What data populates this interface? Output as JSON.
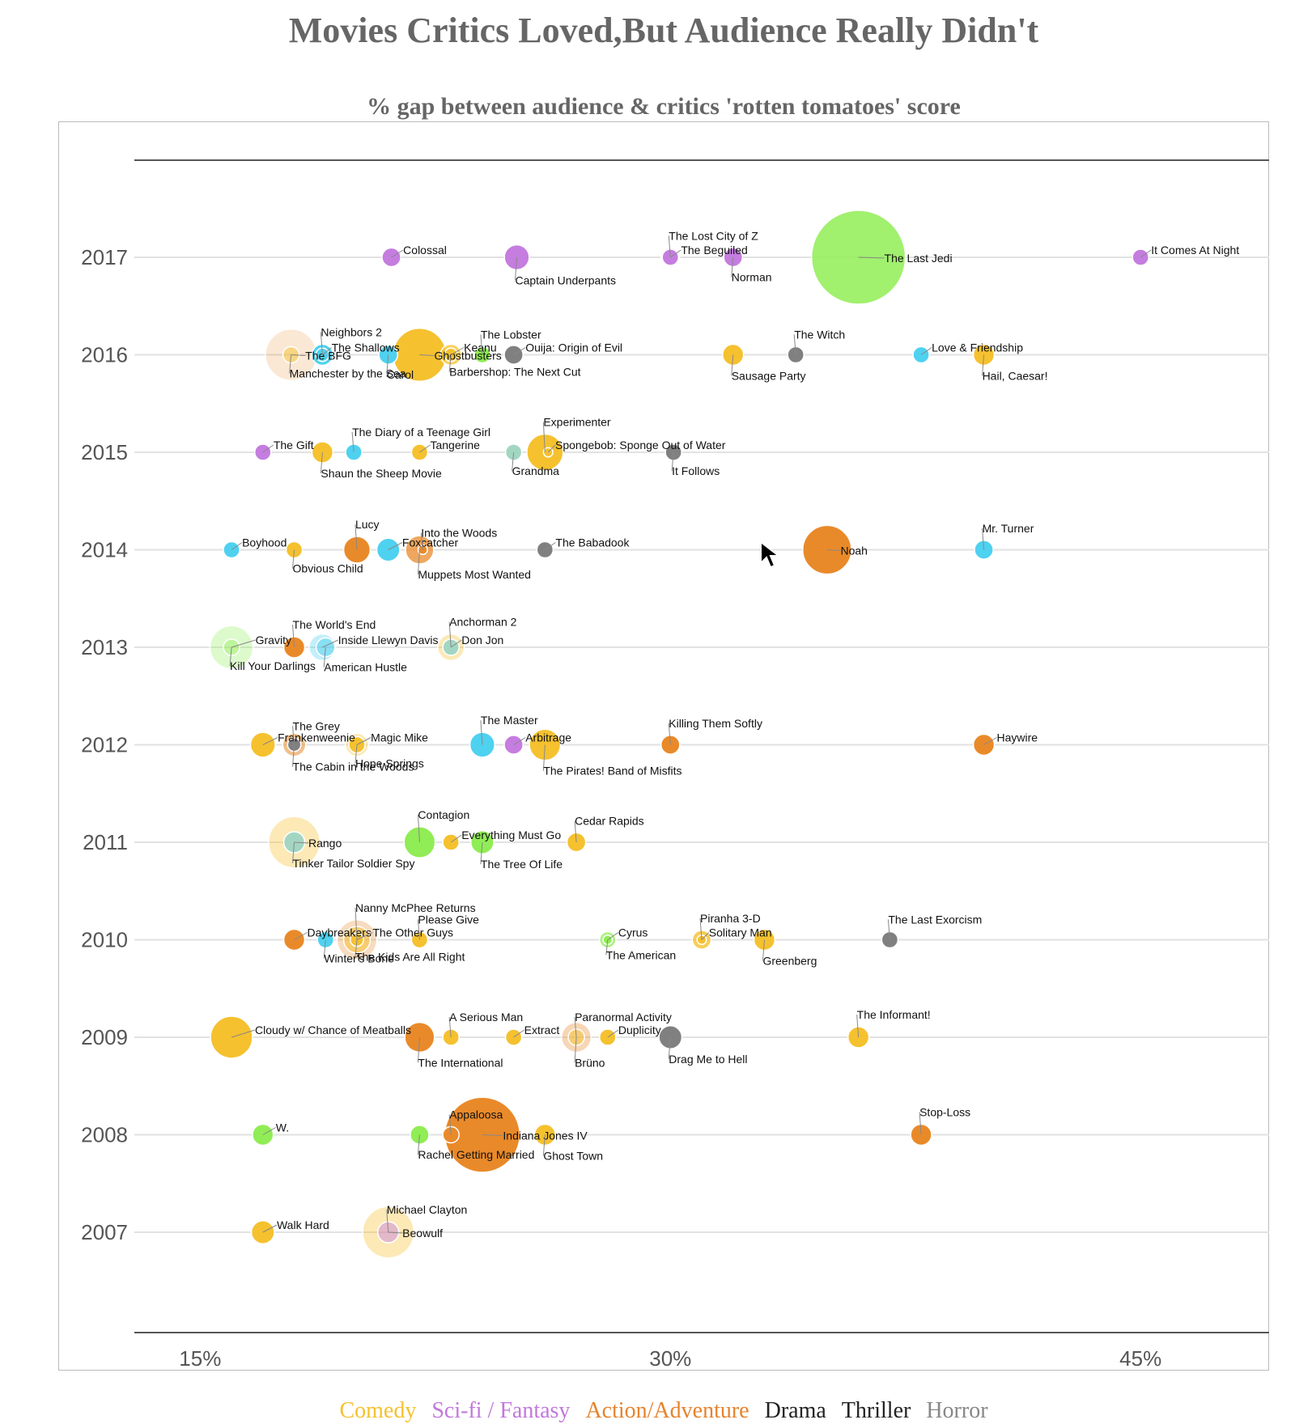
{
  "title": "Movies Critics Loved,But Audience Really Didn't",
  "subtitle": "% gap between audience & critics 'rotten tomatoes' score",
  "legend": [
    {
      "label": "Comedy",
      "color": "#f5c12f"
    },
    {
      "label": "Sci-fi / Fantasy",
      "color": "#c278dc"
    },
    {
      "label": "Action/Adventure",
      "color": "#e6832c"
    },
    {
      "label": "Drama",
      "color": "#222222"
    },
    {
      "label": "Thriller",
      "color": "#222222"
    },
    {
      "label": "Horror",
      "color": "#888888"
    }
  ],
  "chart_data": {
    "type": "scatter",
    "title": "Movies Critics Loved,But Audience Really Didn't",
    "subtitle": "% gap between audience & critics 'rotten tomatoes' score",
    "x_ticks": [
      "15%",
      "30%",
      "45%"
    ],
    "x_tick_values": [
      15,
      30,
      45
    ],
    "xlim": [
      12.9,
      49.1
    ],
    "years": [
      "2017",
      "2016",
      "2015",
      "2014",
      "2013",
      "2012",
      "2011",
      "2010",
      "2009",
      "2008",
      "2007"
    ],
    "colors": {
      "comedy": "#f5c12f",
      "scifi": "#c57ddf",
      "action": "#e98a2a",
      "drama": "#4fd1f0",
      "thriller": "#90ed55",
      "horror": "#808080",
      "other": "#a3d6c2"
    },
    "points": [
      {
        "year": "2017",
        "name": "Colossal",
        "x": 21.1,
        "s": 4,
        "c": "scifi"
      },
      {
        "year": "2017",
        "name": "Captain Underpants",
        "x": 25.1,
        "s": 7,
        "c": "scifi"
      },
      {
        "year": "2017",
        "name": "The Lost City of Z",
        "x": 30.0,
        "s": 4,
        "c": "scifi",
        "o": 0.5
      },
      {
        "year": "2017",
        "name": "The Beguiled",
        "x": 30.0,
        "s": 3,
        "c": "scifi"
      },
      {
        "year": "2017",
        "name": "Norman",
        "x": 32.0,
        "s": 4,
        "c": "scifi"
      },
      {
        "year": "2017",
        "name": "The Last Jedi",
        "x": 36.0,
        "s": 100,
        "c": "thriller",
        "o": 0.85
      },
      {
        "year": "2017",
        "name": "It Comes At Night",
        "x": 45.0,
        "s": 3,
        "c": "scifi"
      },
      {
        "year": "2016",
        "name": "The BFG",
        "x": 17.9,
        "s": 30,
        "c": "action",
        "o": 0.2
      },
      {
        "year": "2016",
        "name": "Manchester by the Sea",
        "x": 17.9,
        "s": 3,
        "c": "comedy",
        "o": 0.5
      },
      {
        "year": "2016",
        "name": "Neighbors 2",
        "x": 18.9,
        "s": 5,
        "c": "drama"
      },
      {
        "year": "2016",
        "name": "The Shallows",
        "x": 18.9,
        "s": 2,
        "c": "drama"
      },
      {
        "year": "2016",
        "name": "Carol",
        "x": 21.0,
        "s": 4,
        "c": "drama"
      },
      {
        "year": "2016",
        "name": "Ghostbusters",
        "x": 22.0,
        "s": 32,
        "c": "comedy"
      },
      {
        "year": "2016",
        "name": "Keanu",
        "x": 23.0,
        "s": 5,
        "c": "comedy",
        "o": 0.75
      },
      {
        "year": "2016",
        "name": "Barbershop: The Next Cut",
        "x": 23.0,
        "s": 2,
        "c": "comedy"
      },
      {
        "year": "2016",
        "name": "The Lobster",
        "x": 24.0,
        "s": 3,
        "c": "thriller"
      },
      {
        "year": "2016",
        "name": "Ouija: Origin of Evil",
        "x": 25.0,
        "s": 4,
        "c": "horror"
      },
      {
        "year": "2016",
        "name": "Sausage Party",
        "x": 32.0,
        "s": 5,
        "c": "comedy"
      },
      {
        "year": "2016",
        "name": "The Witch",
        "x": 34.0,
        "s": 3,
        "c": "horror"
      },
      {
        "year": "2016",
        "name": "Love & Friendship",
        "x": 38.0,
        "s": 3,
        "c": "drama"
      },
      {
        "year": "2016",
        "name": "Hail, Caesar!",
        "x": 40.0,
        "s": 5,
        "c": "comedy"
      },
      {
        "year": "2015",
        "name": "The Gift",
        "x": 17.0,
        "s": 3,
        "c": "scifi"
      },
      {
        "year": "2015",
        "name": "Shaun the Sheep Movie",
        "x": 18.9,
        "s": 5,
        "c": "comedy"
      },
      {
        "year": "2015",
        "name": "The Diary of a Teenage Girl",
        "x": 19.9,
        "s": 3,
        "c": "drama"
      },
      {
        "year": "2015",
        "name": "Tangerine",
        "x": 22.0,
        "s": 3,
        "c": "comedy"
      },
      {
        "year": "2015",
        "name": "Grandma",
        "x": 25.0,
        "s": 3,
        "c": "other"
      },
      {
        "year": "2015",
        "name": "Experimenter",
        "x": 26.0,
        "s": 15,
        "c": "comedy"
      },
      {
        "year": "2015",
        "name": "Spongebob: Sponge Out of Water",
        "x": 26.1,
        "s": 1,
        "c": "comedy"
      },
      {
        "year": "2015",
        "name": "It Follows",
        "x": 30.1,
        "s": 3,
        "c": "horror"
      },
      {
        "year": "2014",
        "name": "Boyhood",
        "x": 16.0,
        "s": 3,
        "c": "drama"
      },
      {
        "year": "2014",
        "name": "Obvious Child",
        "x": 18.0,
        "s": 3,
        "c": "comedy"
      },
      {
        "year": "2014",
        "name": "Lucy",
        "x": 20.0,
        "s": 8,
        "c": "action"
      },
      {
        "year": "2014",
        "name": "Foxcatcher",
        "x": 21.0,
        "s": 6,
        "c": "drama"
      },
      {
        "year": "2014",
        "name": "Muppets Most Wanted",
        "x": 22.0,
        "s": 9,
        "c": "action",
        "o": 0.75
      },
      {
        "year": "2014",
        "name": "Into the Woods",
        "x": 22.1,
        "s": 1,
        "c": "action"
      },
      {
        "year": "2014",
        "name": "The Babadook",
        "x": 26.0,
        "s": 3,
        "c": "horror"
      },
      {
        "year": "2014",
        "name": "Noah",
        "x": 35.0,
        "s": 27,
        "c": "action"
      },
      {
        "year": "2014",
        "name": "Mr. Turner",
        "x": 40.0,
        "s": 4,
        "c": "drama"
      },
      {
        "year": "2013",
        "name": "Gravity",
        "x": 16.0,
        "s": 21,
        "c": "thriller",
        "o": 0.3
      },
      {
        "year": "2013",
        "name": "Kill Your Darlings",
        "x": 16.0,
        "s": 3,
        "c": "thriller",
        "o": 0.4
      },
      {
        "year": "2013",
        "name": "The World's End",
        "x": 18.0,
        "s": 5,
        "c": "action"
      },
      {
        "year": "2013",
        "name": "Inside Llewyn Davis",
        "x": 18.9,
        "s": 8,
        "c": "drama",
        "o": 0.35
      },
      {
        "year": "2013",
        "name": "American Hustle",
        "x": 19.0,
        "s": 4,
        "c": "drama",
        "o": 0.5
      },
      {
        "year": "2013",
        "name": "Anchorman 2",
        "x": 23.0,
        "s": 8,
        "c": "comedy",
        "o": 0.35
      },
      {
        "year": "2013",
        "name": "Don Jon",
        "x": 23.0,
        "s": 3,
        "c": "other"
      },
      {
        "year": "2012",
        "name": "Frankenweenie",
        "x": 17.0,
        "s": 7,
        "c": "comedy"
      },
      {
        "year": "2012",
        "name": "The Cabin in the Woods",
        "x": 18.0,
        "s": 6,
        "c": "action",
        "o": 0.55
      },
      {
        "year": "2012",
        "name": "The Grey",
        "x": 18.0,
        "s": 2,
        "c": "horror"
      },
      {
        "year": "2012",
        "name": "Magic Mike",
        "x": 20.0,
        "s": 6,
        "c": "comedy",
        "o": 0.35
      },
      {
        "year": "2012",
        "name": "Hope Springs",
        "x": 20.0,
        "s": 3,
        "c": "comedy"
      },
      {
        "year": "2012",
        "name": "The Master",
        "x": 24.0,
        "s": 7,
        "c": "drama"
      },
      {
        "year": "2012",
        "name": "Arbitrage",
        "x": 25.0,
        "s": 4,
        "c": "scifi"
      },
      {
        "year": "2012",
        "name": "The Pirates! Band of Misfits",
        "x": 26.0,
        "s": 11,
        "c": "comedy"
      },
      {
        "year": "2012",
        "name": "Killing Them Softly",
        "x": 30.0,
        "s": 4,
        "c": "action"
      },
      {
        "year": "2012",
        "name": "Haywire",
        "x": 40.0,
        "s": 5,
        "c": "action"
      },
      {
        "year": "2011",
        "name": "Rango",
        "x": 18.0,
        "s": 30,
        "c": "comedy",
        "o": 0.35
      },
      {
        "year": "2011",
        "name": "Tinker Tailor Soldier Spy",
        "x": 18.0,
        "s": 5,
        "c": "other"
      },
      {
        "year": "2011",
        "name": "Contagion",
        "x": 22.0,
        "s": 11,
        "c": "thriller"
      },
      {
        "year": "2011",
        "name": "Everything Must Go",
        "x": 23.0,
        "s": 3,
        "c": "comedy"
      },
      {
        "year": "2011",
        "name": "The Tree Of Life",
        "x": 24.0,
        "s": 6,
        "c": "thriller"
      },
      {
        "year": "2011",
        "name": "Cedar Rapids",
        "x": 27.0,
        "s": 4,
        "c": "comedy"
      },
      {
        "year": "2010",
        "name": "Daybreakers",
        "x": 18.0,
        "s": 5,
        "c": "action"
      },
      {
        "year": "2010",
        "name": "Winter's Bone",
        "x": 19.0,
        "s": 3,
        "c": "drama"
      },
      {
        "year": "2010",
        "name": "Nanny McPhee Returns",
        "x": 20.0,
        "s": 18,
        "c": "action",
        "o": 0.3
      },
      {
        "year": "2010",
        "name": "The Other Guys",
        "x": 20.0,
        "s": 8,
        "c": "comedy",
        "o": 0.55
      },
      {
        "year": "2010",
        "name": "The Kids Are All Right",
        "x": 20.0,
        "s": 2,
        "c": "comedy"
      },
      {
        "year": "2010",
        "name": "Please Give",
        "x": 22.0,
        "s": 3,
        "c": "comedy"
      },
      {
        "year": "2010",
        "name": "Cyrus",
        "x": 28.0,
        "s": 3,
        "c": "thriller",
        "o": 0.75
      },
      {
        "year": "2010",
        "name": "The American",
        "x": 28.0,
        "s": 1,
        "c": "thriller"
      },
      {
        "year": "2010",
        "name": "Piranha 3-D",
        "x": 31.0,
        "s": 4,
        "c": "comedy",
        "o": 0.8
      },
      {
        "year": "2010",
        "name": "Solitary Man",
        "x": 31.0,
        "s": 1,
        "c": "comedy"
      },
      {
        "year": "2010",
        "name": "Greenberg",
        "x": 33.0,
        "s": 5,
        "c": "comedy"
      },
      {
        "year": "2010",
        "name": "The Last Exorcism",
        "x": 37.0,
        "s": 3,
        "c": "horror"
      },
      {
        "year": "2009",
        "name": "Cloudy w/ Chance of Meatballs",
        "x": 16.0,
        "s": 20,
        "c": "comedy"
      },
      {
        "year": "2009",
        "name": "The International",
        "x": 22.0,
        "s": 10,
        "c": "action"
      },
      {
        "year": "2009",
        "name": "A Serious Man",
        "x": 23.0,
        "s": 3,
        "c": "comedy"
      },
      {
        "year": "2009",
        "name": "Extract",
        "x": 25.0,
        "s": 3,
        "c": "comedy"
      },
      {
        "year": "2009",
        "name": "Brüno",
        "x": 27.0,
        "s": 10,
        "c": "action",
        "o": 0.35
      },
      {
        "year": "2009",
        "name": "Paranormal Activity",
        "x": 27.0,
        "s": 3,
        "c": "comedy",
        "o": 0.5
      },
      {
        "year": "2009",
        "name": "Duplicity",
        "x": 28.0,
        "s": 3,
        "c": "comedy"
      },
      {
        "year": "2009",
        "name": "Drag Me to Hell",
        "x": 30.0,
        "s": 6,
        "c": "horror"
      },
      {
        "year": "2009",
        "name": "The Informant!",
        "x": 36.0,
        "s": 5,
        "c": "comedy"
      },
      {
        "year": "2008",
        "name": "W.",
        "x": 17.0,
        "s": 5,
        "c": "thriller"
      },
      {
        "year": "2008",
        "name": "Rachel Getting Married",
        "x": 22.0,
        "s": 4,
        "c": "thriller"
      },
      {
        "year": "2008",
        "name": "Appaloosa",
        "x": 23.0,
        "s": 3,
        "c": "action"
      },
      {
        "year": "2008",
        "name": "Indiana Jones IV",
        "x": 24.0,
        "s": 64,
        "c": "action"
      },
      {
        "year": "2008",
        "name": "Ghost Town",
        "x": 26.0,
        "s": 5,
        "c": "comedy"
      },
      {
        "year": "2008",
        "name": "Stop-Loss",
        "x": 38.0,
        "s": 5,
        "c": "action"
      },
      {
        "year": "2007",
        "name": "Walk Hard",
        "x": 17.0,
        "s": 6,
        "c": "comedy"
      },
      {
        "year": "2007",
        "name": "Beowulf",
        "x": 21.0,
        "s": 30,
        "c": "comedy",
        "o": 0.35
      },
      {
        "year": "2007",
        "name": "Michael Clayton",
        "x": 21.0,
        "s": 5,
        "c": "scifi",
        "o": 0.45
      }
    ]
  }
}
